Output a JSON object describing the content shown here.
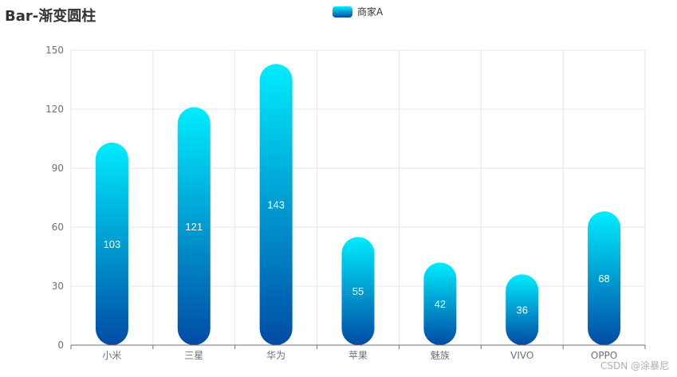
{
  "title": "Bar-渐变圆柱",
  "legend": {
    "label": "商家A"
  },
  "watermark": "CSDN @涂暴尼",
  "colors": {
    "gradient_top": "#00ECFD",
    "gradient_bottom": "#004BA5",
    "axis": "#6E7079",
    "grid": "#E0E6F1",
    "label": "#ffffff"
  },
  "chart_data": {
    "type": "bar",
    "title": "Bar-渐变圆柱",
    "categories": [
      "小米",
      "三星",
      "华为",
      "苹果",
      "魅族",
      "VIVO",
      "OPPO"
    ],
    "series": [
      {
        "name": "商家A",
        "values": [
          103,
          121,
          143,
          55,
          42,
          36,
          68
        ]
      }
    ],
    "ylim": [
      0,
      150
    ],
    "yticks": [
      0,
      30,
      60,
      90,
      120,
      150
    ],
    "grid": true,
    "data_labels": true,
    "legend_position": "top-center"
  }
}
